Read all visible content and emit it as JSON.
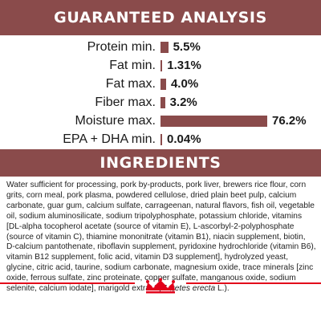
{
  "guaranteed_analysis": {
    "heading": "GUARANTEED ANALYSIS",
    "rows": [
      {
        "label": "Protein min.",
        "value_text": "5.5%",
        "value": 5.5
      },
      {
        "label": "Fat min.",
        "value_text": "1.31%",
        "value": 1.31
      },
      {
        "label": "Fat max.",
        "value_text": "4.0%",
        "value": 4.0
      },
      {
        "label": "Fiber max.",
        "value_text": "3.2%",
        "value": 3.2
      },
      {
        "label": "Moisture max.",
        "value_text": "76.2%",
        "value": 76.2
      },
      {
        "label": "EPA + DHA min.",
        "value_text": "0.04%",
        "value": 0.04
      }
    ]
  },
  "ingredients": {
    "heading": "INGREDIENTS",
    "text_before_italic": "Water sufficient for processing, pork by-products, pork liver, brewers rice flour, corn grits, corn meal, pork plasma, powdered cellulose, dried plain beet pulp, calcium carbonate, guar gum, calcium sulfate, carrageenan, natural flavors, fish oil, vegetable oil, sodium aluminosilicate, sodium tripolyphosphate, potassium chloride, vitamins [DL-alpha tocopherol acetate (source of vitamin E), L-ascorbyl-2-polyphosphate (source of vitamin C), thiamine mononitrate (vitamin B1), niacin supplement, biotin, D-calcium pantothenate, riboflavin supplement, pyridoxine hydrochloride (vitamin B6), vitamin B12 supplement, folic acid, vitamin D3 supplement], hydrolyzed yeast, glycine, citric acid, taurine, sodium carbonate, magnesium oxide, trace minerals [zinc oxide, ferrous sulfate, zinc proteinate, copper sulfate, manganous oxide, sodium selenite, calcium iodate], marigold extract (",
    "italic_text": "Tagetes erecta",
    "text_after_italic": " L.)."
  },
  "colors": {
    "banner": "#8a4b4b",
    "bar": "#8a4b4b",
    "footer_red": "#e2001a"
  },
  "footer": {
    "logo": "royal-canin-crown-logo"
  }
}
